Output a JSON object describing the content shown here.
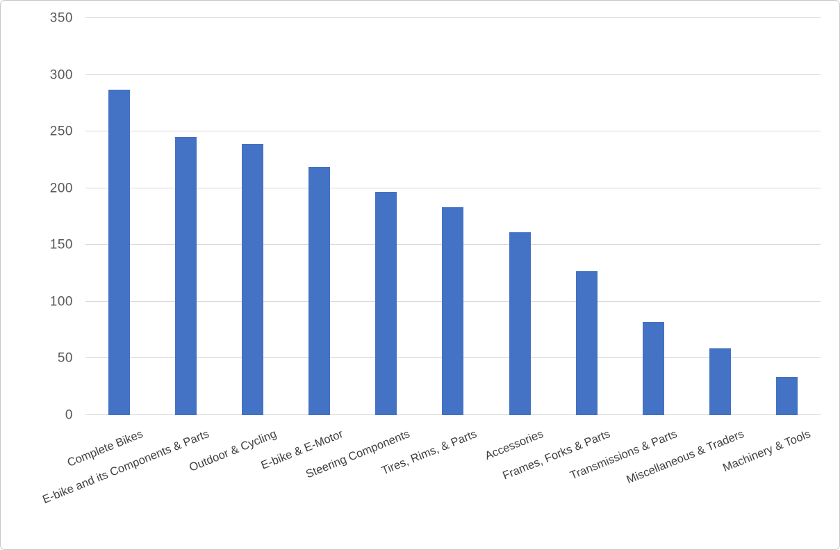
{
  "chart_data": {
    "type": "bar",
    "title": "",
    "xlabel": "",
    "ylabel": "",
    "categories": [
      "Complete Bikes",
      "E-bike and its Components & Parts",
      "Outdoor & Cycling",
      "E-bike & E-Motor",
      "Steering Components",
      "Tires, Rims, & Parts",
      "Accessories",
      "Frames, Forks & Parts",
      "Transmissions & Parts",
      "Miscellaneous & Traders",
      "Machinery & Tools"
    ],
    "values": [
      287,
      245,
      239,
      219,
      197,
      183,
      161,
      127,
      82,
      59,
      34
    ],
    "ylim": [
      0,
      350
    ],
    "yticks": [
      0,
      50,
      100,
      150,
      200,
      250,
      300,
      350
    ],
    "grid": true,
    "legend": false,
    "bar_color": "#4472C4",
    "gridline_color": "#d9d9d9",
    "y_tick_label_color": "#595959",
    "x_tick_label_color": "#3f3f3f",
    "frame_border_color": "#c6c6c6",
    "x_label_rotation_deg": -22
  }
}
